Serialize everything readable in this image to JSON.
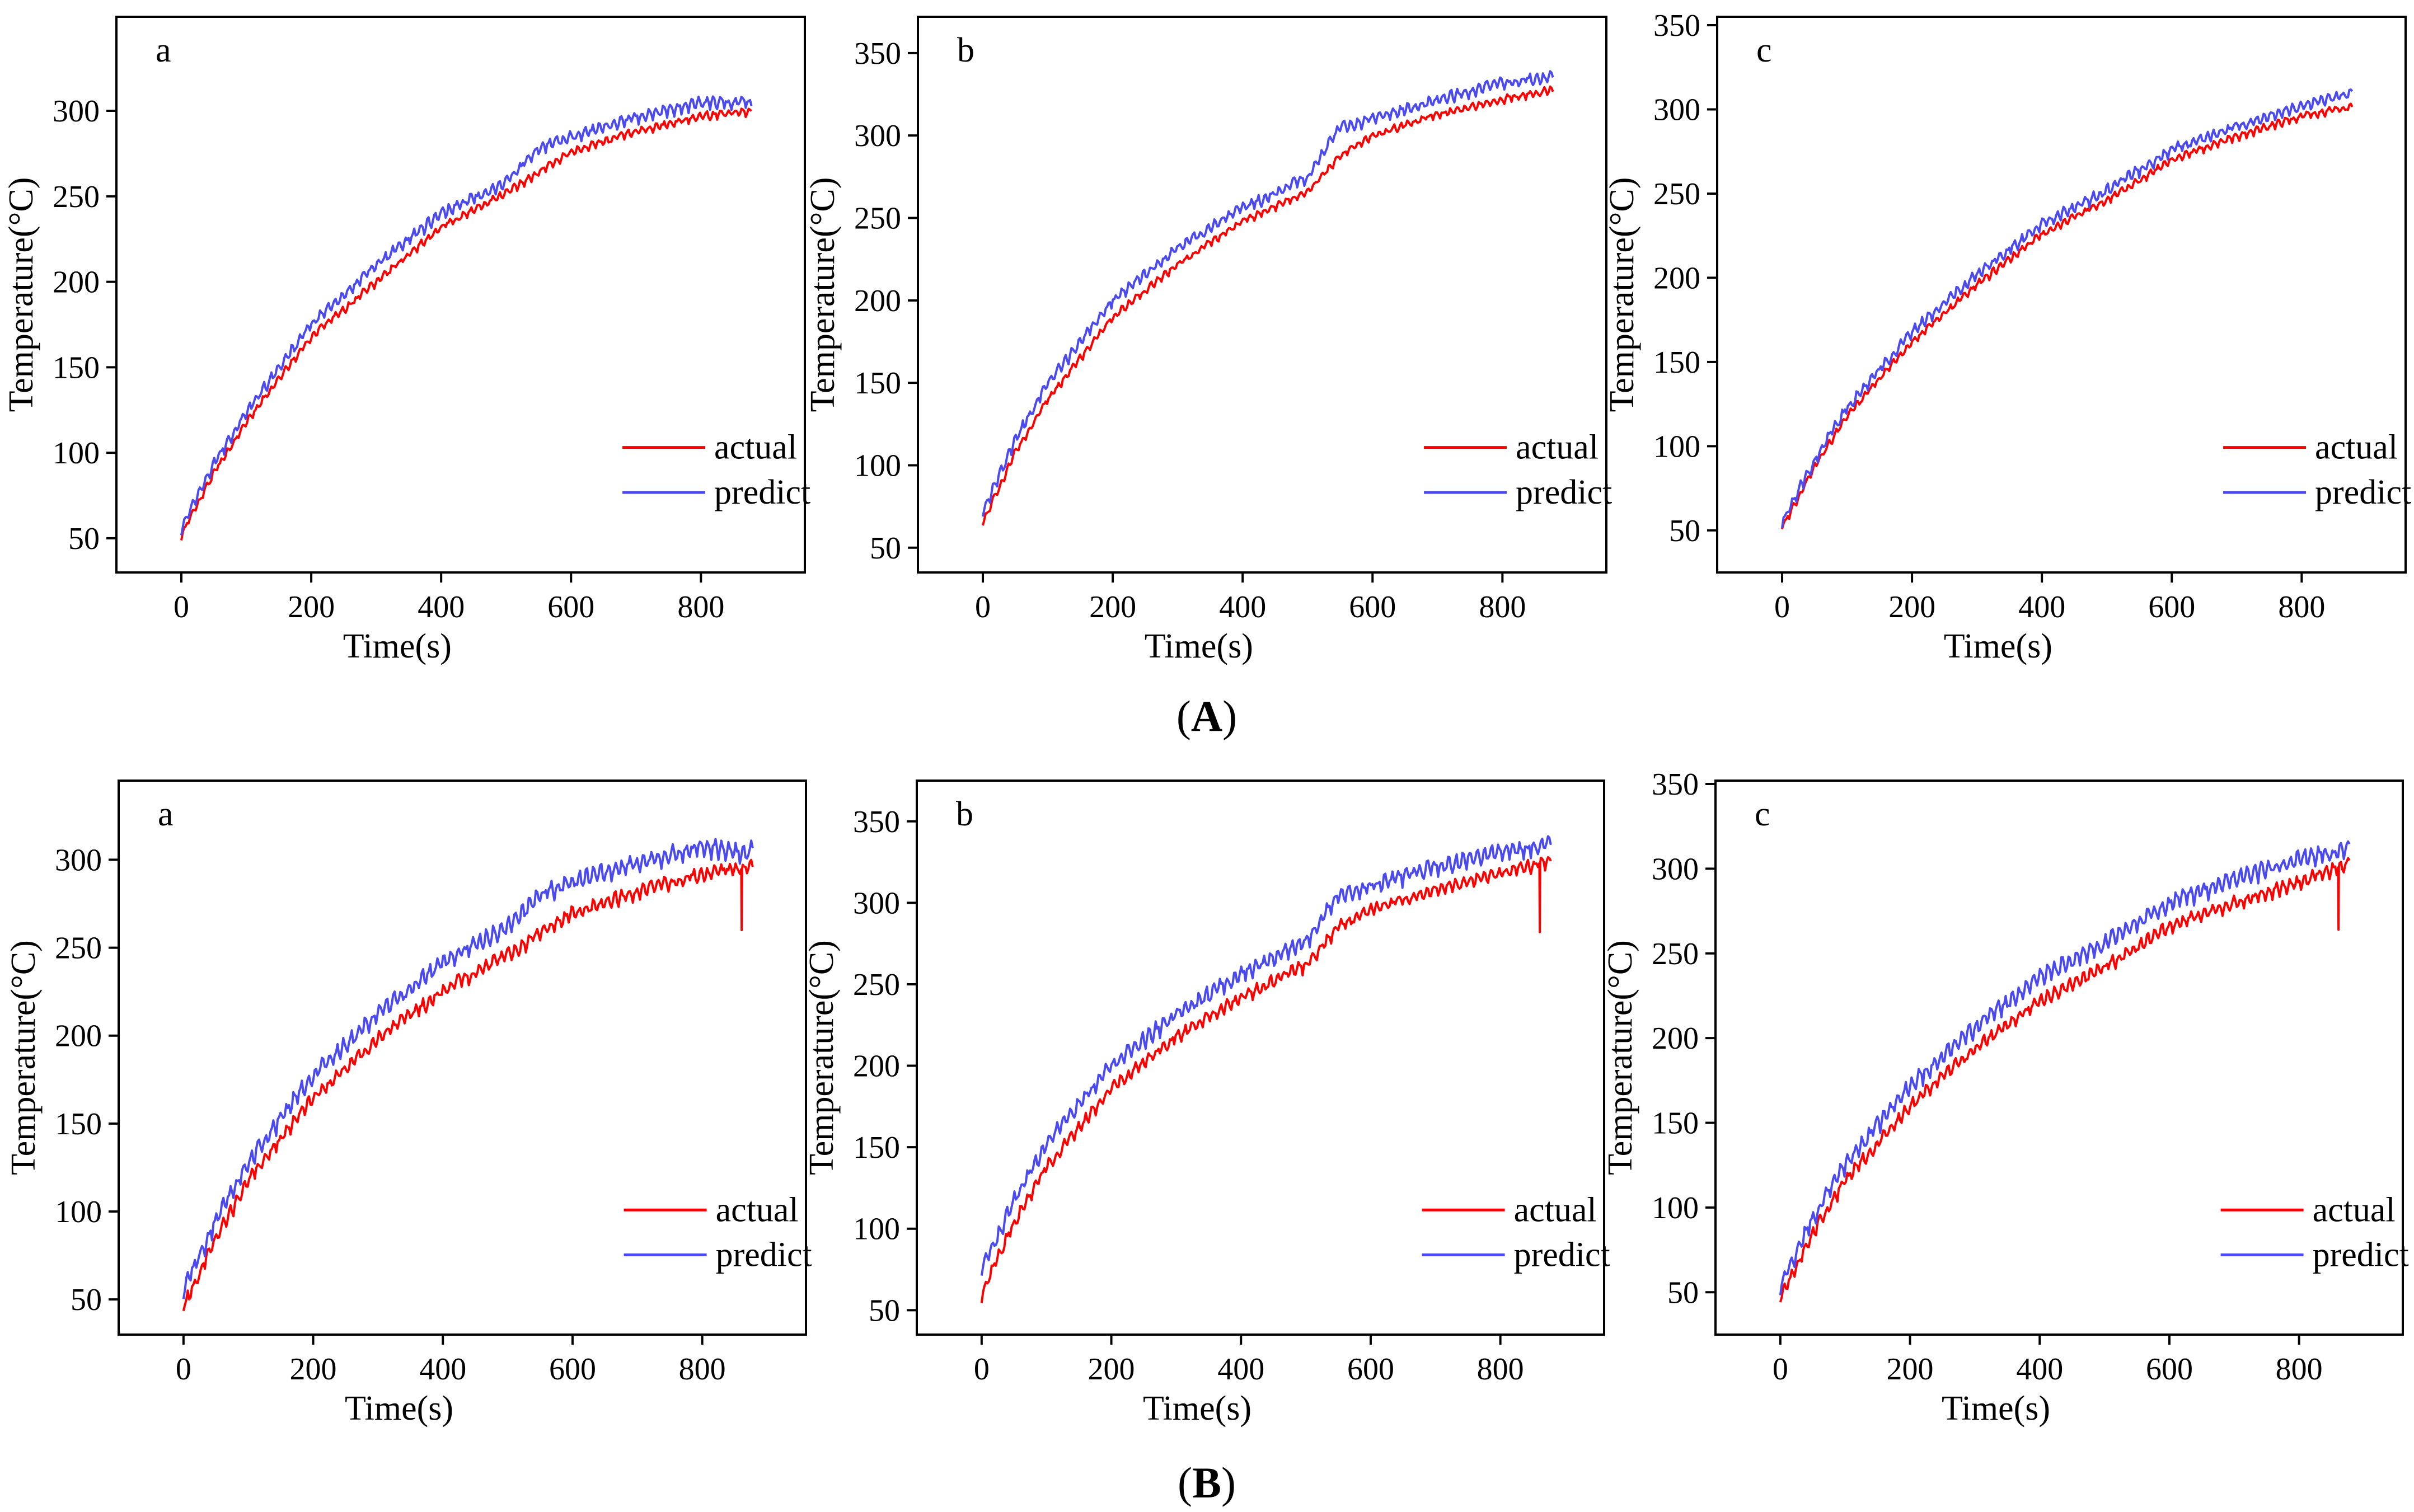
{
  "figure": {
    "rows": [
      {
        "label": "(A)",
        "label_open": "(",
        "label_letter": "A",
        "label_close": ")"
      },
      {
        "label": "(B)",
        "label_open": "(",
        "label_letter": "B",
        "label_close": ")"
      }
    ]
  },
  "colors": {
    "actual": "#ff0000",
    "predict": "#4a4af0"
  },
  "chart_data": [
    {
      "type": "line",
      "row": "A",
      "panel_label": "a",
      "xlabel": "Time(s)",
      "ylabel": "Temperature(°C)",
      "xlim": [
        -100,
        960
      ],
      "ylim": [
        30,
        355
      ],
      "xticks": [
        0,
        200,
        400,
        600,
        800
      ],
      "yticks": [
        50,
        100,
        150,
        200,
        250,
        300
      ],
      "legend": "bottom-right",
      "legend_entries": [
        "actual",
        "predict"
      ],
      "series": [
        {
          "name": "actual",
          "x": [
            0,
            50,
            100,
            200,
            300,
            400,
            500,
            550,
            600,
            700,
            800,
            880
          ],
          "y": [
            52,
            88,
            118,
            168,
            200,
            232,
            252,
            264,
            276,
            288,
            297,
            300
          ]
        },
        {
          "name": "predict",
          "x": [
            0,
            50,
            100,
            200,
            300,
            400,
            500,
            550,
            600,
            700,
            800,
            880
          ],
          "y": [
            56,
            94,
            124,
            175,
            210,
            240,
            258,
            278,
            285,
            296,
            305,
            305
          ]
        }
      ]
    },
    {
      "type": "line",
      "row": "A",
      "panel_label": "b",
      "xlabel": "Time(s)",
      "ylabel": "Temperature(°C)",
      "xlim": [
        -100,
        960
      ],
      "ylim": [
        35,
        372
      ],
      "xticks": [
        0,
        200,
        400,
        600,
        800
      ],
      "yticks": [
        50,
        100,
        150,
        200,
        250,
        300,
        350
      ],
      "legend": "bottom-right",
      "legend_entries": [
        "actual",
        "predict"
      ],
      "series": [
        {
          "name": "actual",
          "x": [
            0,
            50,
            100,
            200,
            300,
            400,
            500,
            550,
            600,
            700,
            800,
            880
          ],
          "y": [
            65,
            108,
            140,
            190,
            222,
            248,
            266,
            288,
            300,
            313,
            322,
            328
          ]
        },
        {
          "name": "predict",
          "x": [
            0,
            50,
            100,
            200,
            300,
            400,
            500,
            550,
            600,
            700,
            800,
            880
          ],
          "y": [
            72,
            116,
            150,
            200,
            232,
            256,
            275,
            305,
            310,
            322,
            332,
            336
          ]
        }
      ]
    },
    {
      "type": "line",
      "row": "A",
      "panel_label": "c",
      "xlabel": "Time(s)",
      "ylabel": "Temperature(°C)",
      "xlim": [
        -100,
        960
      ],
      "ylim": [
        25,
        355
      ],
      "xticks": [
        0,
        200,
        400,
        600,
        800
      ],
      "yticks": [
        50,
        100,
        150,
        200,
        250,
        300,
        350
      ],
      "legend": "bottom-right",
      "legend_entries": [
        "actual",
        "predict"
      ],
      "series": [
        {
          "name": "actual",
          "x": [
            0,
            50,
            100,
            200,
            300,
            400,
            500,
            550,
            600,
            700,
            800,
            880
          ],
          "y": [
            52,
            88,
            118,
            162,
            196,
            226,
            246,
            258,
            270,
            284,
            296,
            302
          ]
        },
        {
          "name": "predict",
          "x": [
            0,
            50,
            100,
            200,
            300,
            400,
            500,
            550,
            600,
            700,
            800,
            880
          ],
          "y": [
            55,
            92,
            123,
            168,
            202,
            232,
            252,
            264,
            276,
            290,
            302,
            310
          ]
        }
      ]
    },
    {
      "type": "line",
      "row": "B",
      "panel_label": "a",
      "xlabel": "Time(s)",
      "ylabel": "Temperature(°C)",
      "xlim": [
        -100,
        960
      ],
      "ylim": [
        30,
        345
      ],
      "xticks": [
        0,
        200,
        400,
        600,
        800
      ],
      "yticks": [
        50,
        100,
        150,
        200,
        250,
        300
      ],
      "legend": "bottom-right",
      "legend_entries": [
        "actual",
        "predict"
      ],
      "series": [
        {
          "name": "actual",
          "x": [
            0,
            50,
            100,
            200,
            300,
            400,
            500,
            550,
            600,
            700,
            800,
            860,
            880
          ],
          "y": [
            46,
            85,
            118,
            165,
            198,
            226,
            246,
            258,
            270,
            282,
            292,
            260,
            296
          ]
        },
        {
          "name": "predict",
          "x": [
            0,
            50,
            100,
            200,
            300,
            400,
            500,
            550,
            600,
            700,
            800,
            860,
            880
          ],
          "y": [
            56,
            95,
            128,
            178,
            212,
            242,
            262,
            280,
            288,
            298,
            308,
            304,
            306
          ]
        }
      ]
    },
    {
      "type": "line",
      "row": "B",
      "panel_label": "b",
      "xlabel": "Time(s)",
      "ylabel": "Temperature(°C)",
      "xlim": [
        -100,
        960
      ],
      "ylim": [
        35,
        375
      ],
      "xticks": [
        0,
        200,
        400,
        600,
        800
      ],
      "yticks": [
        50,
        100,
        150,
        200,
        250,
        300,
        350
      ],
      "legend": "bottom-right",
      "legend_entries": [
        "actual",
        "predict"
      ],
      "series": [
        {
          "name": "actual",
          "x": [
            0,
            50,
            100,
            200,
            300,
            400,
            500,
            550,
            600,
            700,
            800,
            860,
            880
          ],
          "y": [
            60,
            104,
            138,
            186,
            218,
            242,
            262,
            285,
            296,
            308,
            318,
            282,
            326
          ]
        },
        {
          "name": "predict",
          "x": [
            0,
            50,
            100,
            200,
            300,
            400,
            500,
            550,
            600,
            700,
            800,
            860,
            880
          ],
          "y": [
            74,
            118,
            152,
            200,
            232,
            256,
            276,
            305,
            310,
            322,
            332,
            334,
            338
          ]
        }
      ]
    },
    {
      "type": "line",
      "row": "B",
      "panel_label": "c",
      "xlabel": "Time(s)",
      "ylabel": "Temperature(°C)",
      "xlim": [
        -100,
        960
      ],
      "ylim": [
        25,
        352
      ],
      "xticks": [
        0,
        200,
        400,
        600,
        800
      ],
      "yticks": [
        50,
        100,
        150,
        200,
        250,
        300,
        350
      ],
      "legend": "bottom-right",
      "legend_entries": [
        "actual",
        "predict"
      ],
      "series": [
        {
          "name": "actual",
          "x": [
            0,
            50,
            100,
            200,
            300,
            400,
            500,
            550,
            600,
            700,
            800,
            860,
            880
          ],
          "y": [
            46,
            85,
            116,
            160,
            194,
            222,
            242,
            254,
            266,
            280,
            292,
            264,
            304
          ]
        },
        {
          "name": "predict",
          "x": [
            0,
            50,
            100,
            200,
            300,
            400,
            500,
            550,
            600,
            700,
            800,
            860,
            880
          ],
          "y": [
            55,
            94,
            126,
            172,
            206,
            236,
            256,
            268,
            280,
            294,
            306,
            310,
            314
          ]
        }
      ]
    }
  ]
}
